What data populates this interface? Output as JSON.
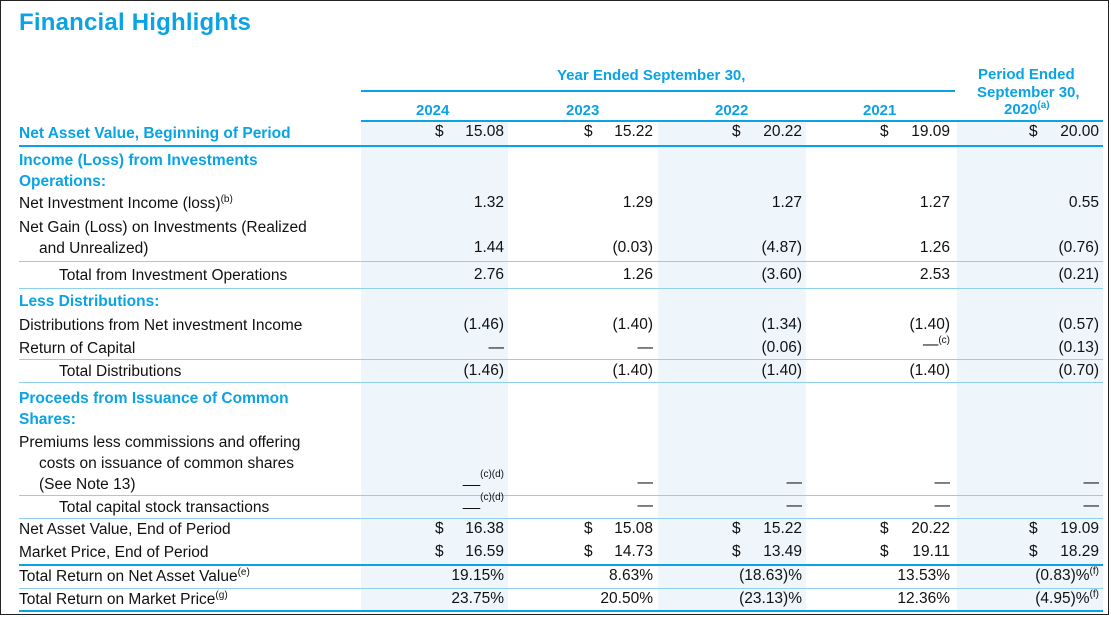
{
  "title": "Financial Highlights",
  "header": {
    "group": "Year Ended September 30,",
    "period_ended_line1": "Period Ended",
    "period_ended_line2": "September 30,",
    "period_ended_year": "2020",
    "period_ended_note": "(a)",
    "years": [
      "2024",
      "2023",
      "2022",
      "2021"
    ]
  },
  "rows": {
    "nav_begin": {
      "label": "Net Asset Value, Beginning of Period",
      "dollar": "$",
      "values": [
        "15.08",
        "15.22",
        "20.22",
        "19.09",
        "20.00"
      ]
    },
    "income_section": {
      "label_line1": "Income (Loss) from Investments",
      "label_line2": "Operations:"
    },
    "nii": {
      "label": "Net Investment Income (loss)",
      "note": "(b)",
      "values": [
        "1.32",
        "1.29",
        "1.27",
        "1.27",
        "0.55"
      ]
    },
    "net_gain": {
      "label_line1": "Net Gain (Loss) on Investments (Realized",
      "label_line2": "and Unrealized)",
      "values": [
        "1.44",
        "(0.03)",
        "(4.87)",
        "1.26",
        "(0.76)"
      ]
    },
    "total_ops": {
      "label": "Total from Investment Operations",
      "values": [
        "2.76",
        "1.26",
        "(3.60)",
        "2.53",
        "(0.21)"
      ]
    },
    "dist_section": {
      "label": "Less Distributions:"
    },
    "dist_nii": {
      "label": "Distributions from Net investment Income",
      "values": [
        "(1.46)",
        "(1.40)",
        "(1.34)",
        "(1.40)",
        "(0.57)"
      ]
    },
    "roc": {
      "label": "Return of Capital",
      "values": [
        "—",
        "—",
        "(0.06)",
        "—",
        "(0.13)"
      ],
      "note_2021": "(c)"
    },
    "total_dist": {
      "label": "Total Distributions",
      "values": [
        "(1.46)",
        "(1.40)",
        "(1.40)",
        "(1.40)",
        "(0.70)"
      ]
    },
    "proceeds_section": {
      "label_line1": "Proceeds from Issuance of Common",
      "label_line2": "Shares:"
    },
    "premiums": {
      "label_line1": "Premiums less commissions and offering",
      "label_line2": "costs on issuance of common shares",
      "label_line3": "(See Note 13)",
      "values": [
        "__",
        "—",
        "—",
        "—",
        "—"
      ],
      "note_2024": "(c)(d)"
    },
    "total_capital": {
      "label": "Total capital stock transactions",
      "values": [
        "__",
        "—",
        "—",
        "—",
        "—"
      ],
      "note_2024": "(c)(d)"
    },
    "nav_end": {
      "label": "Net Asset Value, End of Period",
      "dollar": "$",
      "values": [
        "16.38",
        "15.08",
        "15.22",
        "20.22",
        "19.09"
      ]
    },
    "market_price": {
      "label": "Market Price, End of Period",
      "dollar": "$",
      "values": [
        "16.59",
        "14.73",
        "13.49",
        "19.11",
        "18.29"
      ]
    },
    "tr_nav": {
      "label": "Total Return on Net Asset Value",
      "note": "(e)",
      "values": [
        "19.15%",
        "8.63%",
        "(18.63)%",
        "13.53%",
        "(0.83)%"
      ],
      "note_2020": "(f)"
    },
    "tr_market": {
      "label": "Total Return on Market Price",
      "note": "(g)",
      "values": [
        "23.75%",
        "20.50%",
        "(23.13)%",
        "12.36%",
        "(4.95)%"
      ],
      "note_2020": "(f)"
    }
  },
  "colors": {
    "accent": "#0aa3e3",
    "shade": "#eef5fb"
  }
}
